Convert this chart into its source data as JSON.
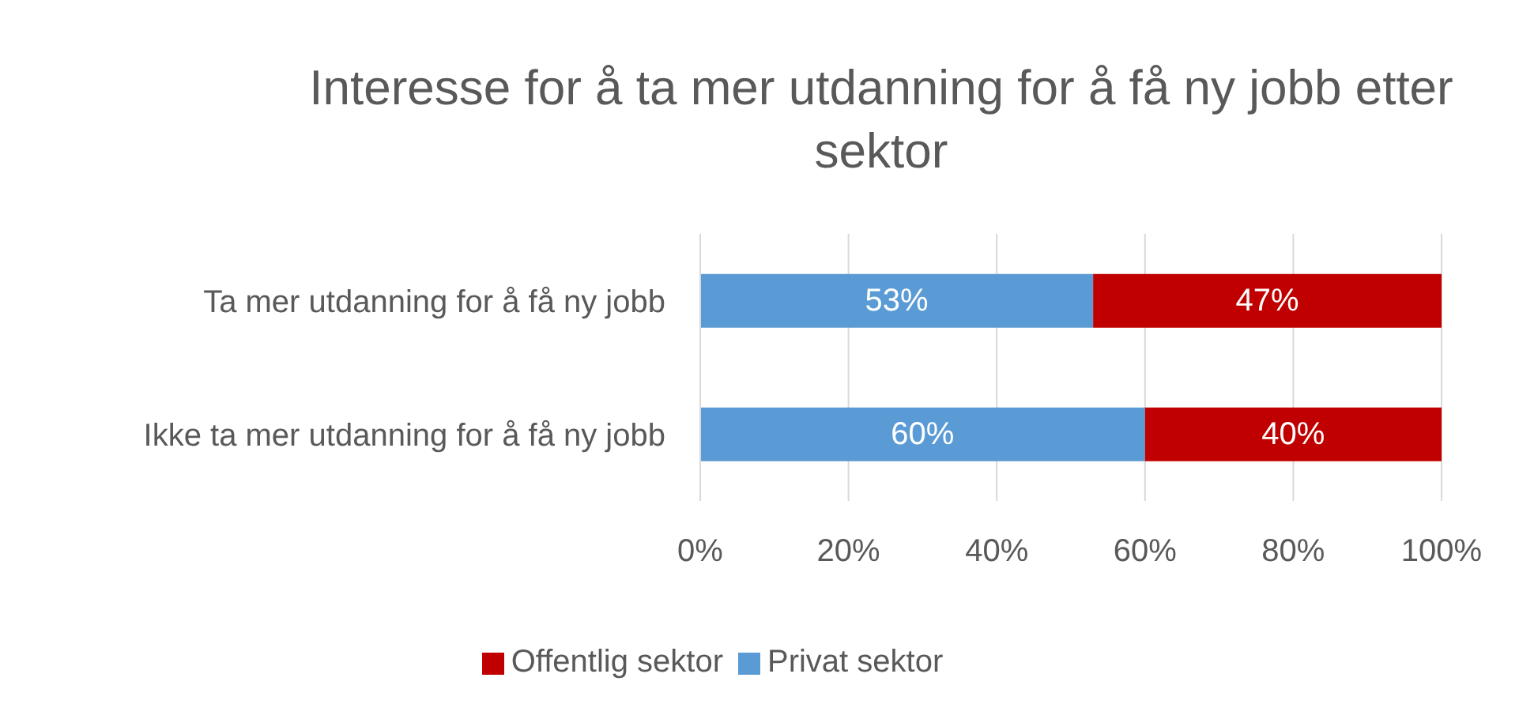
{
  "chart_data": {
    "type": "bar",
    "orientation": "horizontal",
    "stacked": true,
    "title": "Interesse for å ta mer utdanning for å få ny jobb etter sektor",
    "categories": [
      "Ta mer utdanning for å få ny jobb",
      "Ikke ta mer utdanning for å få ny jobb"
    ],
    "series": [
      {
        "name": "Privat sektor",
        "color": "#5b9bd5",
        "values": [
          53,
          60
        ],
        "value_labels": [
          "53%",
          "60%"
        ]
      },
      {
        "name": "Offentlig sektor",
        "color": "#c00000",
        "values": [
          47,
          40
        ],
        "value_labels": [
          "47%",
          "40%"
        ]
      }
    ],
    "xlim": [
      0,
      100
    ],
    "xticks": [
      {
        "value": 0,
        "label": "0%"
      },
      {
        "value": 20,
        "label": "20%"
      },
      {
        "value": 40,
        "label": "40%"
      },
      {
        "value": 60,
        "label": "60%"
      },
      {
        "value": 80,
        "label": "80%"
      },
      {
        "value": 100,
        "label": "100%"
      }
    ],
    "grid": "x",
    "legend": "bottom"
  }
}
